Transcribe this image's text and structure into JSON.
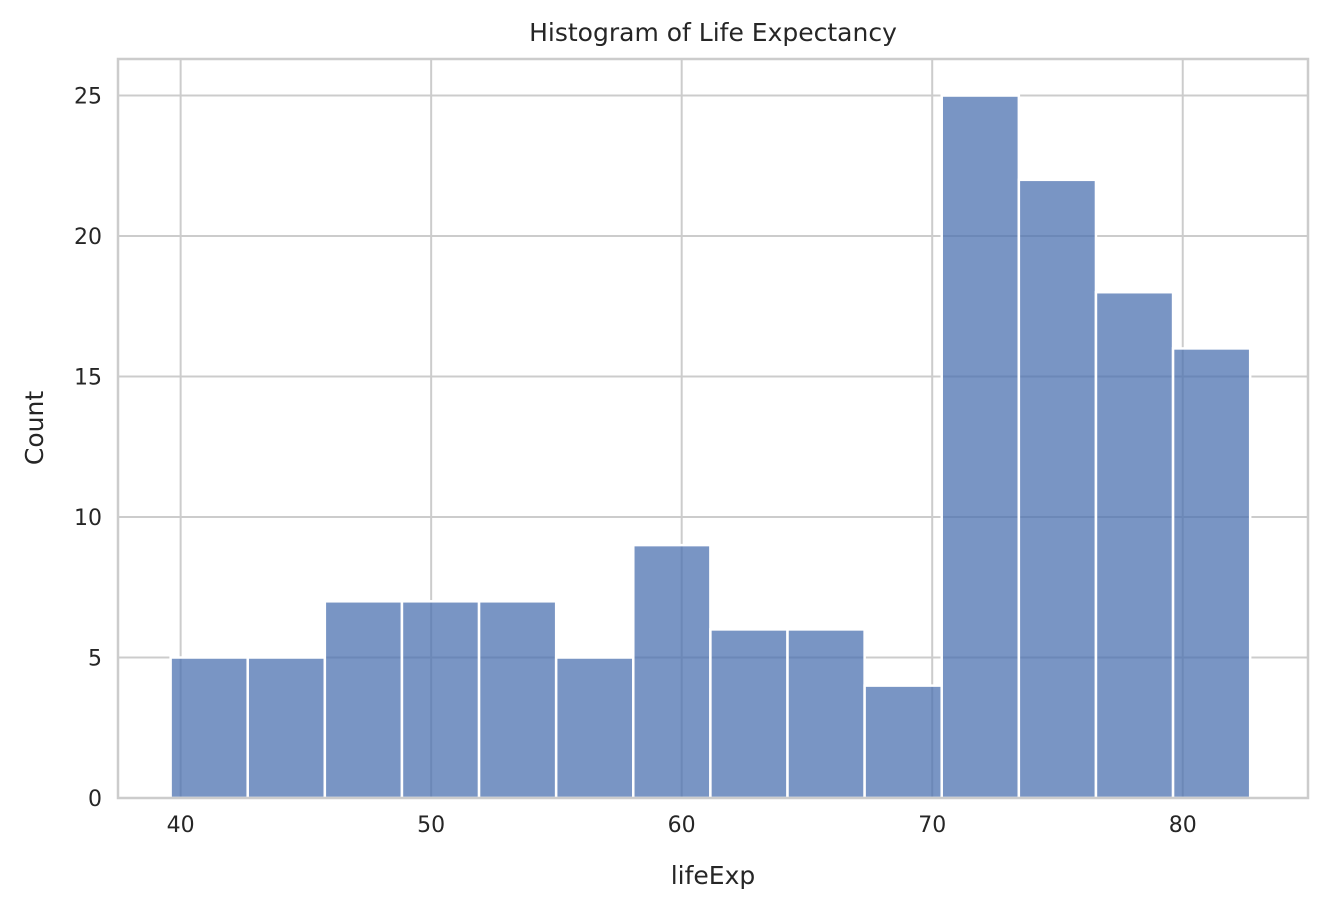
{
  "chart_data": {
    "type": "histogram",
    "title": "Histogram of Life Expectancy",
    "xlabel": "lifeExp",
    "ylabel": "Count",
    "bin_start": 39.6,
    "bin_width": 3.078,
    "counts": [
      5,
      5,
      7,
      7,
      7,
      5,
      9,
      6,
      6,
      4,
      25,
      22,
      18,
      16
    ],
    "xlim": [
      37.5,
      85
    ],
    "ylim": [
      0,
      26.3
    ],
    "x_ticks": [
      40,
      50,
      60,
      70,
      80
    ],
    "y_ticks": [
      0,
      5,
      10,
      15,
      20,
      25
    ],
    "bar_color": "#4c72b0",
    "bar_opacity": 0.75,
    "grid": true
  }
}
